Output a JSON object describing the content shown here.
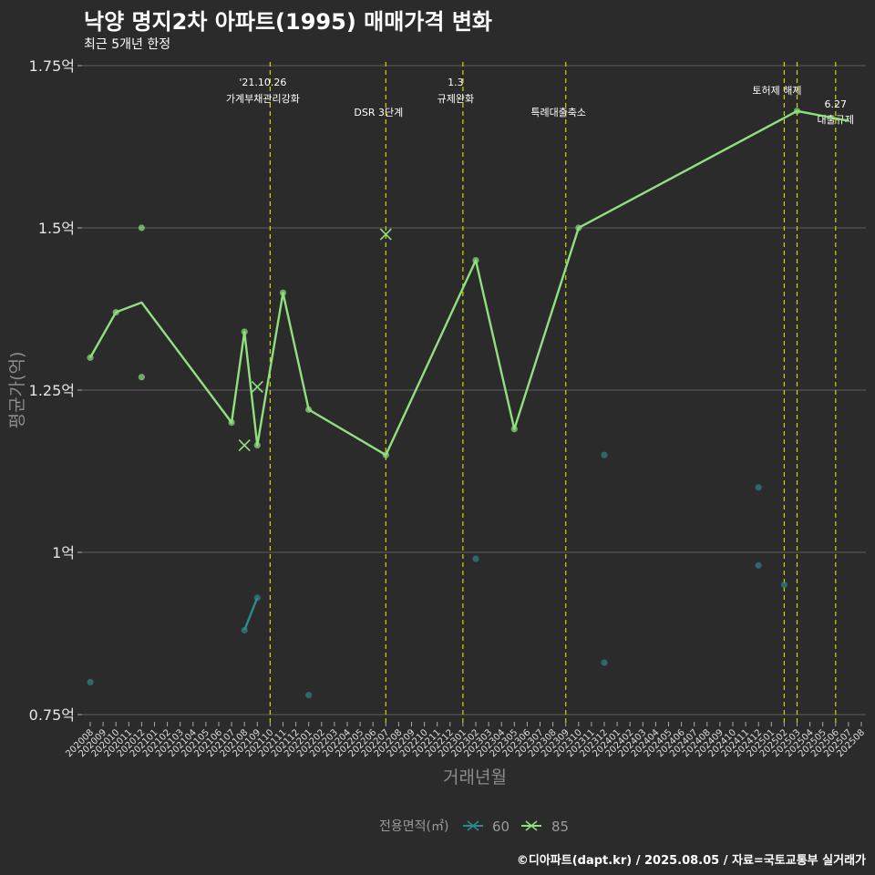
{
  "chart_data": {
    "type": "line",
    "title": "낙양 명지2차 아파트(1995) 매매가격 변화",
    "subtitle": "최근 5개년 한정",
    "xlabel": "거래년월",
    "ylabel": "평균가(억)",
    "caption": "©디아파트(dapt.kr) / 2025.08.05 / 자료=국토교통부 실거래가",
    "ylim": [
      0.73,
      1.78
    ],
    "yticks": [
      {
        "value": 0.75,
        "label": "0.75억"
      },
      {
        "value": 1.0,
        "label": "1억"
      },
      {
        "value": 1.25,
        "label": "1.25억"
      },
      {
        "value": 1.5,
        "label": "1.5억"
      },
      {
        "value": 1.75,
        "label": "1.75억"
      }
    ],
    "months": [
      "202008",
      "202009",
      "202010",
      "202011",
      "202012",
      "202101",
      "202102",
      "202103",
      "202104",
      "202105",
      "202106",
      "202107",
      "202108",
      "202109",
      "202110",
      "202111",
      "202112",
      "202201",
      "202202",
      "202203",
      "202204",
      "202205",
      "202206",
      "202207",
      "202208",
      "202209",
      "202210",
      "202211",
      "202212",
      "202301",
      "202302",
      "202303",
      "202304",
      "202305",
      "202306",
      "202307",
      "202308",
      "202309",
      "202310",
      "202311",
      "202312",
      "202401",
      "202402",
      "202403",
      "202404",
      "202405",
      "202406",
      "202407",
      "202408",
      "202409",
      "202410",
      "202411",
      "202412",
      "202501",
      "202502",
      "202503",
      "202504",
      "202505",
      "202506",
      "202507",
      "202508"
    ],
    "series": [
      {
        "name": "60",
        "color": "#2e8b8b",
        "line": [
          [
            "202108",
            0.88
          ],
          [
            "202109",
            0.93
          ]
        ],
        "points": [
          [
            "202008",
            0.8
          ],
          [
            "202108",
            0.88
          ],
          [
            "202109",
            0.93
          ],
          [
            "202201",
            0.78
          ],
          [
            "202302",
            0.99
          ],
          [
            "202312",
            1.15
          ],
          [
            "202312",
            0.83
          ],
          [
            "202412",
            1.1
          ],
          [
            "202412",
            0.98
          ],
          [
            "202502",
            0.95
          ]
        ],
        "crosses": []
      },
      {
        "name": "85",
        "color": "#90e080",
        "line": [
          [
            "202008",
            1.3
          ],
          [
            "202010",
            1.37
          ],
          [
            "202012",
            1.385
          ],
          [
            "202107",
            1.2
          ],
          [
            "202108",
            1.34
          ],
          [
            "202109",
            1.165
          ],
          [
            "202111",
            1.4
          ],
          [
            "202201",
            1.22
          ],
          [
            "202207",
            1.15
          ],
          [
            "202302",
            1.45
          ],
          [
            "202305",
            1.19
          ],
          [
            "202310",
            1.5
          ],
          [
            "202503",
            1.68
          ],
          [
            "202507",
            1.665
          ]
        ],
        "points": [
          [
            "202008",
            1.3
          ],
          [
            "202010",
            1.37
          ],
          [
            "202012",
            1.5
          ],
          [
            "202012",
            1.27
          ],
          [
            "202107",
            1.2
          ],
          [
            "202108",
            1.34
          ],
          [
            "202109",
            1.165
          ],
          [
            "202111",
            1.4
          ],
          [
            "202201",
            1.22
          ],
          [
            "202207",
            1.15
          ],
          [
            "202302",
            1.45
          ],
          [
            "202305",
            1.19
          ],
          [
            "202310",
            1.5
          ],
          [
            "202503",
            1.68
          ]
        ],
        "crosses": [
          [
            "202108",
            1.165
          ],
          [
            "202109",
            1.255
          ],
          [
            "202207",
            1.49
          ]
        ]
      }
    ],
    "events": [
      {
        "month": "202110",
        "label1": "'21.10.26",
        "label2": "가계부채관리강화"
      },
      {
        "month": "202207",
        "label1": "",
        "label2": "DSR 3단계"
      },
      {
        "month": "202301",
        "label1": "1.3",
        "label2": "규제완화"
      },
      {
        "month": "202309",
        "label1": "",
        "label2": "특례대출축소"
      },
      {
        "month": "202502",
        "label1": "",
        "label2": "토허제 해제"
      },
      {
        "month": "202503",
        "label1": "",
        "label2": ""
      },
      {
        "month": "202506",
        "label1": "6.27",
        "label2": "대출규제"
      }
    ],
    "event_color": "#d4d400",
    "legend": {
      "title": "전용면적(㎡)",
      "items": [
        "60",
        "85"
      ]
    }
  }
}
